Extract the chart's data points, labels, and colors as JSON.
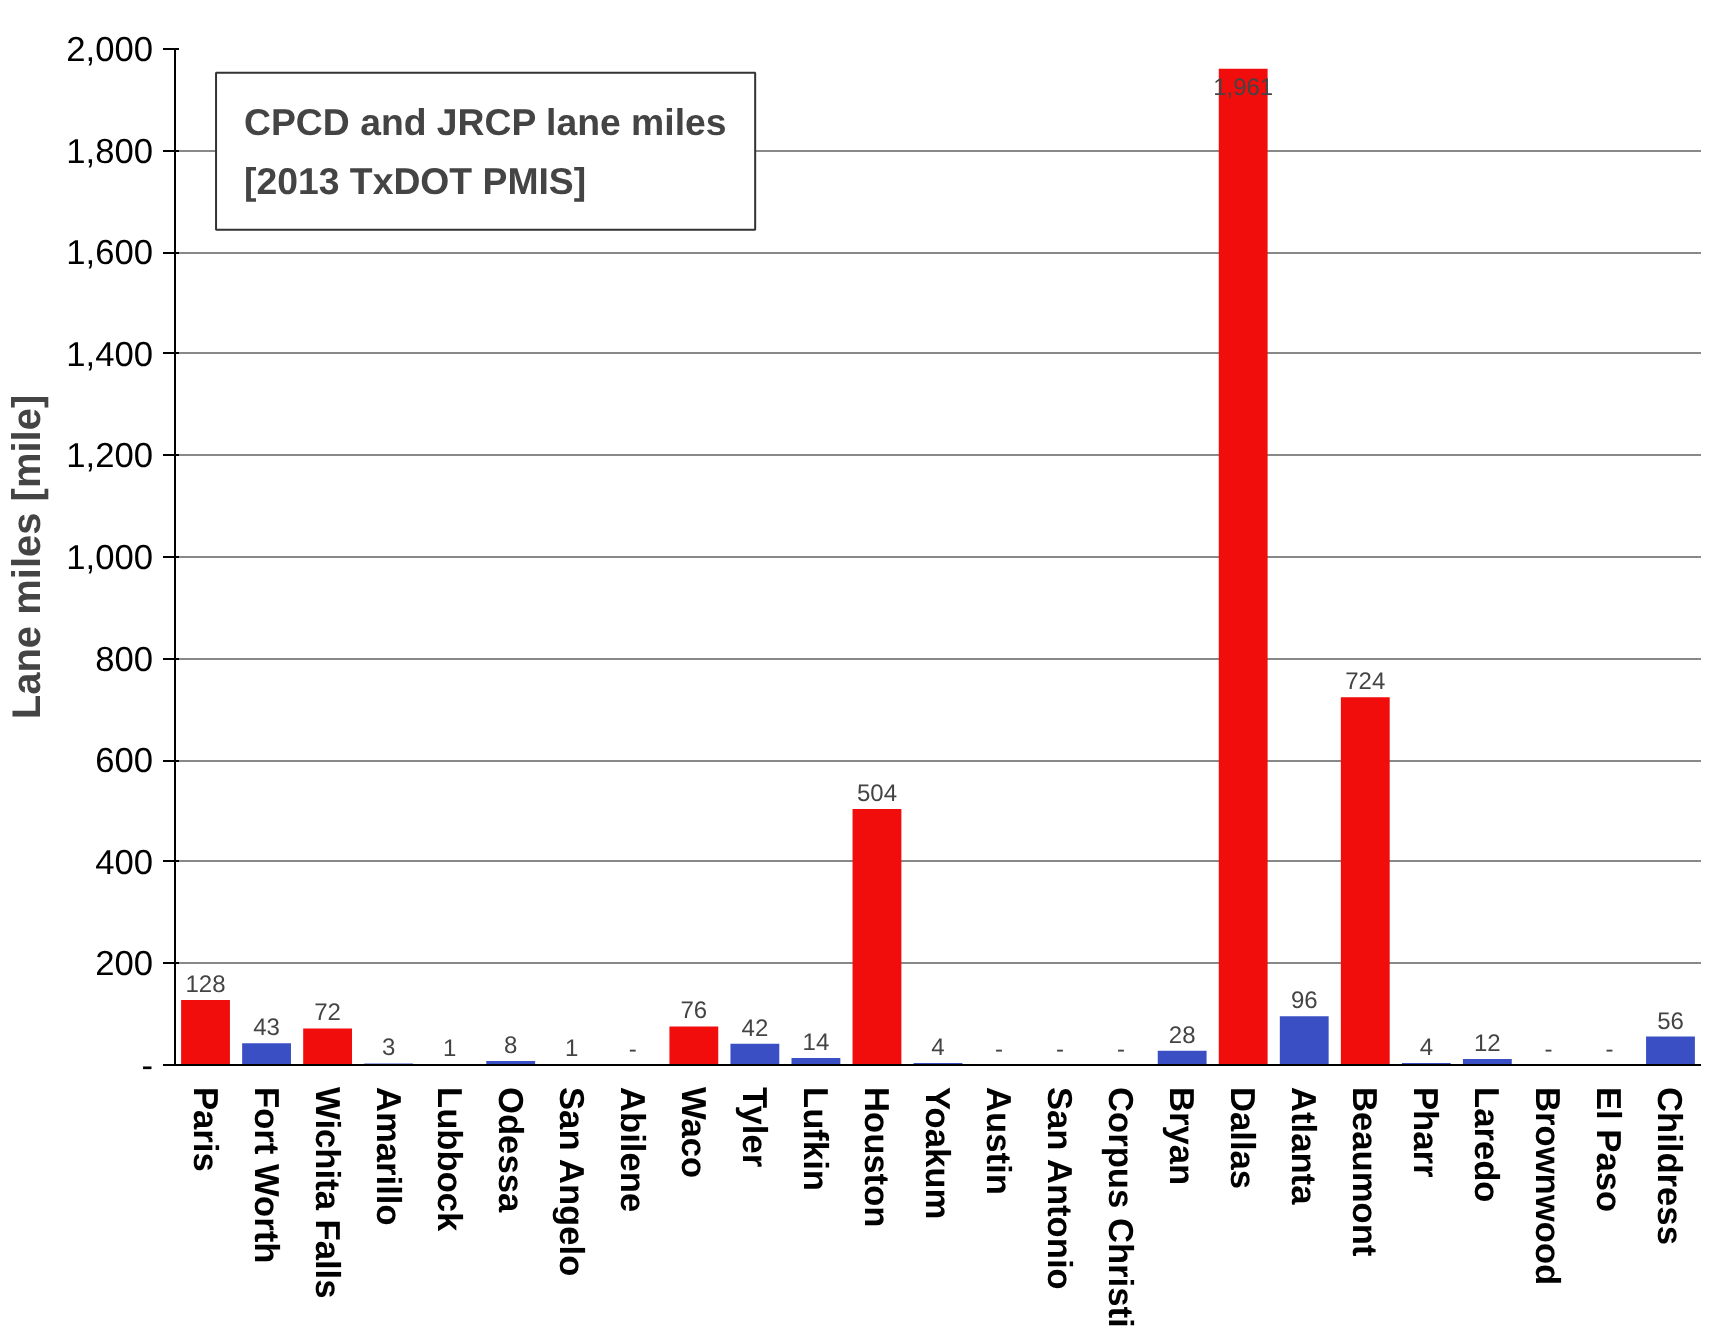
{
  "chart_data": {
    "type": "bar",
    "title": "CPCD and JRCP lane miles\n[2013 TxDOT PMIS]",
    "ylabel": "Lane miles [mile]",
    "categories": [
      "Paris",
      "Fort Worth",
      "Wichita Falls",
      "Amarillo",
      "Lubbock",
      "Odessa",
      "San Angelo",
      "Abilene",
      "Waco",
      "Tyler",
      "Lufkin",
      "Houston",
      "Yoakum",
      "Austin",
      "San Antonio",
      "Corpus Christi",
      "Bryan",
      "Dallas",
      "Atlanta",
      "Beaumont",
      "Pharr",
      "Laredo",
      "Brownwood",
      "El Paso",
      "Childress"
    ],
    "values": [
      128,
      43,
      72,
      3,
      1,
      8,
      1,
      0,
      76,
      42,
      14,
      504,
      4,
      0,
      0,
      0,
      28,
      1961,
      96,
      724,
      4,
      12,
      0,
      0,
      56
    ],
    "value_labels": [
      "128",
      "43",
      "72",
      "3",
      "1",
      "8",
      "1",
      "-",
      "76",
      "42",
      "14",
      "504",
      "4",
      "-",
      "-",
      "-",
      "28",
      "1,961",
      "96",
      "724",
      "4",
      "12",
      "-",
      "-",
      "56"
    ],
    "colors": [
      "#f20d0d",
      "#3b4fc4",
      "#f20d0d",
      "#3b4fc4",
      "#3b4fc4",
      "#3b4fc4",
      "#3b4fc4",
      "#3b4fc4",
      "#f20d0d",
      "#3b4fc4",
      "#3b4fc4",
      "#f20d0d",
      "#3b4fc4",
      "#3b4fc4",
      "#3b4fc4",
      "#3b4fc4",
      "#3b4fc4",
      "#f20d0d",
      "#3b4fc4",
      "#f20d0d",
      "#3b4fc4",
      "#3b4fc4",
      "#3b4fc4",
      "#3b4fc4",
      "#3b4fc4"
    ],
    "ylim": [
      0,
      2000
    ],
    "yticks": [
      {
        "value": 0,
        "label": "-"
      },
      200,
      400,
      600,
      800,
      {
        "value": 1000,
        "label": "1,000"
      },
      {
        "value": 1200,
        "label": "1,200"
      },
      {
        "value": 1400,
        "label": "1,400"
      },
      {
        "value": 1600,
        "label": "1,600"
      },
      {
        "value": 1800,
        "label": "1,800"
      },
      {
        "value": 2000,
        "label": "2,000"
      }
    ],
    "grid": "y"
  }
}
